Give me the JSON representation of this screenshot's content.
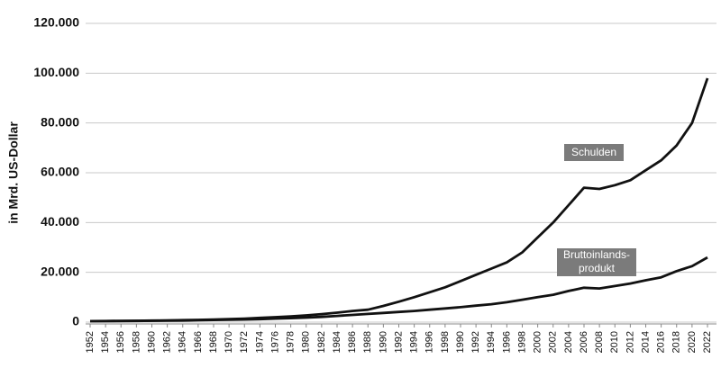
{
  "chart_data": {
    "type": "line",
    "y_label": "in Mrd. US-Dollar",
    "categories": [
      "1952",
      "1954",
      "1956",
      "1958",
      "1960",
      "1962",
      "1964",
      "1966",
      "1968",
      "1970",
      "1972",
      "1974",
      "1976",
      "1978",
      "1980",
      "1982",
      "1984",
      "1986",
      "1988",
      "1990",
      "1992",
      "1994",
      "1996",
      "1998",
      "1990",
      "1992",
      "1994",
      "1996",
      "1998",
      "2000",
      "2002",
      "2004",
      "2006",
      "2008",
      "2010",
      "2012",
      "2014",
      "2016",
      "2018",
      "2020",
      "2022"
    ],
    "series": [
      {
        "name": "Schulden",
        "color": "#111111",
        "values": [
          400,
          450,
          500,
          550,
          600,
          700,
          800,
          900,
          1000,
          1200,
          1400,
          1700,
          2000,
          2300,
          2700,
          3200,
          3800,
          4500,
          5000,
          6500,
          8200,
          10000,
          12000,
          14000,
          16500,
          19000,
          21500,
          24000,
          28000,
          34000,
          40000,
          47000,
          54000,
          53500,
          55000,
          57000,
          61000,
          65000,
          71000,
          80000,
          98000
        ]
      },
      {
        "name": "Bruttoinlandsprodukt",
        "color": "#111111",
        "values": [
          350,
          380,
          420,
          480,
          540,
          600,
          660,
          750,
          850,
          950,
          1050,
          1200,
          1400,
          1600,
          1800,
          2100,
          2500,
          2900,
          3300,
          3700,
          4100,
          4500,
          5000,
          5500,
          6000,
          6600,
          7200,
          8000,
          9000,
          10000,
          11000,
          12500,
          13800,
          13500,
          14500,
          15500,
          16800,
          18000,
          20500,
          22500,
          26000
        ]
      }
    ],
    "annotations": [
      "Schulden",
      "Bruttoinlands-",
      "produkt"
    ],
    "ylim": [
      0,
      120000
    ],
    "yticks": [
      0,
      {
        "value": 20000,
        "label": "20.000"
      },
      {
        "value": 40000,
        "label": "40.000"
      },
      {
        "value": 60000,
        "label": "60.000"
      },
      {
        "value": 80000,
        "label": "80.000"
      },
      {
        "value": 100000,
        "label": "100.000"
      },
      {
        "value": 120000,
        "label": "120.000"
      }
    ],
    "grid": true
  }
}
